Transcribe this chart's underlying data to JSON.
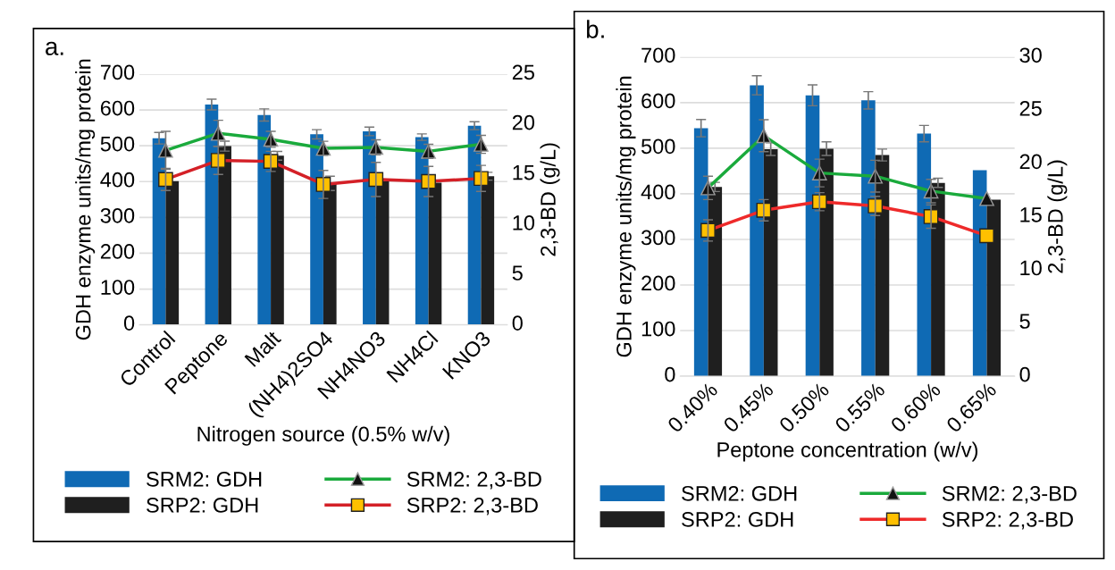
{
  "chart_data": [
    {
      "type": "bar",
      "title": "a.",
      "xlabel": "Nitrogen source (0.5% w/v)",
      "ylabel": "GDH enzyme units/mg protein",
      "y2label": "2,3-BD (g/L)",
      "categories": [
        "Control",
        "Peptone",
        "Malt",
        "(NH4)2SO4",
        "NH4NO3",
        "NH4Cl",
        "KNO3"
      ],
      "series": [
        {
          "name": "SRM2: GDH",
          "color": "#0f6ab4",
          "values": [
            521,
            615,
            586,
            532,
            540,
            524,
            556
          ],
          "errors": [
            16,
            15,
            17,
            13,
            12,
            9,
            11
          ]
        },
        {
          "name": "SRP2: GDH",
          "color": "#1f1f1f",
          "values": [
            401,
            499,
            472,
            395,
            401,
            397,
            415
          ],
          "errors": [
            null,
            14,
            12,
            20,
            null,
            null,
            11
          ]
        },
        {
          "name": "SRM2: 2,3-BD",
          "type": "line",
          "axis": "y2",
          "marker": "triangle",
          "color": "#1aaa3c",
          "values": [
            17.4,
            19.1,
            18.5,
            17.6,
            17.7,
            17.3,
            18.0
          ],
          "errors": [
            1.9,
            1.3,
            0.8,
            0.7,
            0.75,
            0.7,
            0.9
          ]
        },
        {
          "name": "SRP2: 2,3-BD",
          "type": "line",
          "axis": "y2",
          "marker": "square",
          "color": "#d42027",
          "values": [
            14.5,
            16.4,
            16.3,
            14.0,
            14.5,
            14.3,
            14.6
          ],
          "errors": [
            1.1,
            1.4,
            1.0,
            1.4,
            1.7,
            1.5,
            1.3
          ]
        }
      ],
      "ylim": [
        0,
        700
      ],
      "yticks": [
        0,
        100,
        200,
        300,
        400,
        500,
        600,
        700
      ],
      "y2lim": [
        0,
        25
      ],
      "y2ticks": [
        0,
        5,
        10,
        15,
        20,
        25
      ],
      "grid": "y",
      "legend": "bottom"
    },
    {
      "type": "bar",
      "title": "b.",
      "xlabel": "Peptone concentration (w/v)",
      "ylabel": "GDH enzyme units/mg protein",
      "y2label": "2,3-BD (g/L)",
      "categories": [
        "0.40%",
        "0.45%",
        "0.50%",
        "0.55%",
        "0.60%",
        "0.65%"
      ],
      "series": [
        {
          "name": "SRM2: GDH",
          "color": "#0f6ab4",
          "values": [
            544,
            638,
            616,
            605,
            532,
            452
          ],
          "errors": [
            19,
            21,
            23,
            19,
            18,
            null
          ]
        },
        {
          "name": "SRP2: GDH",
          "color": "#1f1f1f",
          "values": [
            415,
            498,
            499,
            485,
            424,
            387
          ],
          "errors": [
            10,
            14,
            15,
            13,
            10,
            null
          ]
        },
        {
          "name": "SRM2: 2,3-BD",
          "type": "line",
          "axis": "y2",
          "marker": "triangle",
          "color": "#1aaa3c",
          "values": [
            17.7,
            22.6,
            19.1,
            18.8,
            17.4,
            16.7
          ],
          "errors": [
            1.1,
            1.5,
            1.3,
            1.5,
            1.1,
            null
          ]
        },
        {
          "name": "SRP2: 2,3-BD",
          "type": "line",
          "axis": "y2",
          "marker": "square",
          "color": "#ee2a2a",
          "values": [
            13.7,
            15.6,
            16.4,
            16.0,
            15.0,
            13.2
          ],
          "errors": [
            1.0,
            1.0,
            0.85,
            0.9,
            1.1,
            null
          ]
        }
      ],
      "ylim": [
        0,
        700
      ],
      "yticks": [
        0,
        100,
        200,
        300,
        400,
        500,
        600,
        700
      ],
      "y2lim": [
        0,
        30
      ],
      "y2ticks": [
        0,
        5,
        10,
        15,
        20,
        25,
        30
      ],
      "grid": "y",
      "legend": "bottom"
    }
  ]
}
